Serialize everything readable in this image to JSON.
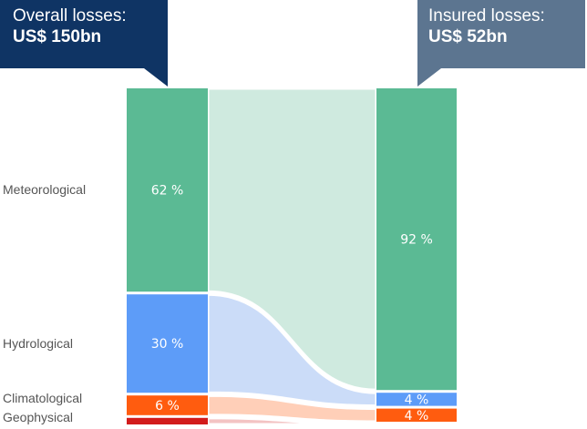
{
  "chart_data": {
    "type": "sankey",
    "title": "",
    "callouts": {
      "overall": {
        "label": "Overall losses:",
        "value": "US$ 150bn"
      },
      "insured": {
        "label": "Insured losses:",
        "value": "US$ 52bn"
      }
    },
    "categories": [
      "Meteorological",
      "Hydrological",
      "Climatological",
      "Geophysical"
    ],
    "overall_percent": [
      62,
      30,
      6,
      2
    ],
    "insured_percent": [
      92,
      4,
      4,
      0
    ],
    "overall_labels": [
      "62 %",
      "30 %",
      "6 %",
      ""
    ],
    "insured_labels": [
      "92 %",
      "4 %",
      "4 %",
      ""
    ]
  },
  "colors": {
    "meteorological": "#5bba94",
    "meteorological_flow": "#cfeadf",
    "hydrological": "#5d9cf8",
    "hydrological_flow": "#cbdcf8",
    "climatological": "#ff5c0f",
    "climatological_flow": "#ffcfb8",
    "geophysical": "#d21c1c",
    "geophysical_flow": "#f3c3c3",
    "callout_overall": "#0f3464",
    "callout_insured": "#5c7590"
  }
}
